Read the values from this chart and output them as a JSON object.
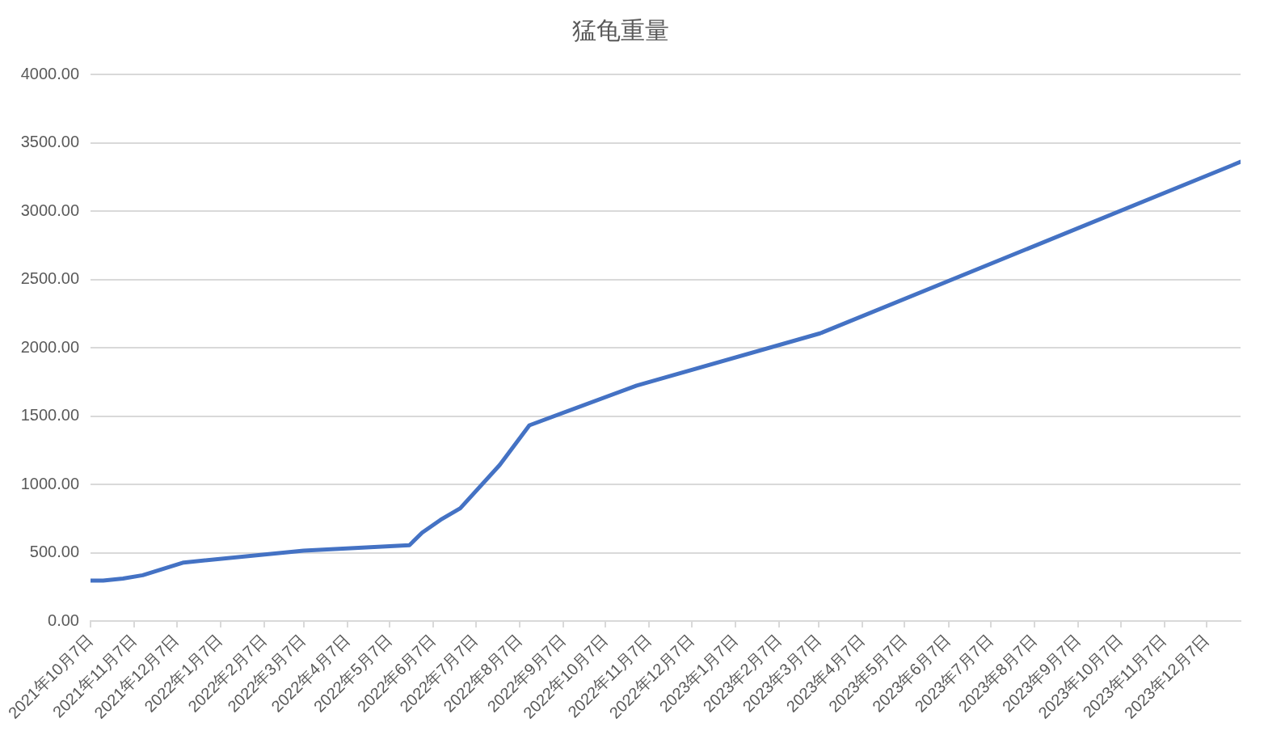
{
  "chart_data": {
    "type": "line",
    "title": "猛龟重量",
    "x": [
      "2021-10-07",
      "2021-10-16",
      "2021-10-30",
      "2021-11-13",
      "2021-12-12",
      "2022-03-07",
      "2022-05-21",
      "2022-05-30",
      "2022-06-12",
      "2022-06-26",
      "2022-07-24",
      "2022-08-14",
      "2022-10-29",
      "2023-03-08",
      "2023-12-31"
    ],
    "values": [
      296,
      296,
      311,
      335,
      428,
      515,
      555,
      646,
      740,
      825,
      1142,
      1432,
      1723,
      2105,
      3360
    ],
    "color": "#4472c4",
    "marker": "none",
    "grid": "y",
    "xlim": [
      "2021-10-07",
      "2023-12-31"
    ],
    "xticks": [
      {
        "value": "2021-10-07",
        "label": "2021年10月7日"
      },
      {
        "value": "2021-11-07",
        "label": "2021年11月7日"
      },
      {
        "value": "2021-12-07",
        "label": "2021年12月7日"
      },
      {
        "value": "2022-01-07",
        "label": "2022年1月7日"
      },
      {
        "value": "2022-02-07",
        "label": "2022年2月7日"
      },
      {
        "value": "2022-03-07",
        "label": "2022年3月7日"
      },
      {
        "value": "2022-04-07",
        "label": "2022年4月7日"
      },
      {
        "value": "2022-05-07",
        "label": "2022年5月7日"
      },
      {
        "value": "2022-06-07",
        "label": "2022年6月7日"
      },
      {
        "value": "2022-07-07",
        "label": "2022年7月7日"
      },
      {
        "value": "2022-08-07",
        "label": "2022年8月7日"
      },
      {
        "value": "2022-09-07",
        "label": "2022年9月7日"
      },
      {
        "value": "2022-10-07",
        "label": "2022年10月7日"
      },
      {
        "value": "2022-11-07",
        "label": "2022年11月7日"
      },
      {
        "value": "2022-12-07",
        "label": "2022年12月7日"
      },
      {
        "value": "2023-01-07",
        "label": "2023年1月7日"
      },
      {
        "value": "2023-02-07",
        "label": "2023年2月7日"
      },
      {
        "value": "2023-03-07",
        "label": "2023年3月7日"
      },
      {
        "value": "2023-04-07",
        "label": "2023年4月7日"
      },
      {
        "value": "2023-05-07",
        "label": "2023年5月7日"
      },
      {
        "value": "2023-06-07",
        "label": "2023年6月7日"
      },
      {
        "value": "2023-07-07",
        "label": "2023年7月7日"
      },
      {
        "value": "2023-08-07",
        "label": "2023年8月7日"
      },
      {
        "value": "2023-09-07",
        "label": "2023年9月7日"
      },
      {
        "value": "2023-10-07",
        "label": "2023年10月7日"
      },
      {
        "value": "2023-11-07",
        "label": "2023年11月7日"
      },
      {
        "value": "2023-12-07",
        "label": "2023年12月7日"
      }
    ],
    "ylim": [
      0,
      4000
    ],
    "yticks": [
      {
        "value": 0,
        "label": "0.00"
      },
      {
        "value": 500,
        "label": "500.00"
      },
      {
        "value": 1000,
        "label": "1000.00"
      },
      {
        "value": 1500,
        "label": "1500.00"
      },
      {
        "value": 2000,
        "label": "2000.00"
      },
      {
        "value": 2500,
        "label": "2500.00"
      },
      {
        "value": 3000,
        "label": "3000.00"
      },
      {
        "value": 3500,
        "label": "3500.00"
      },
      {
        "value": 4000,
        "label": "4000.00"
      }
    ]
  }
}
